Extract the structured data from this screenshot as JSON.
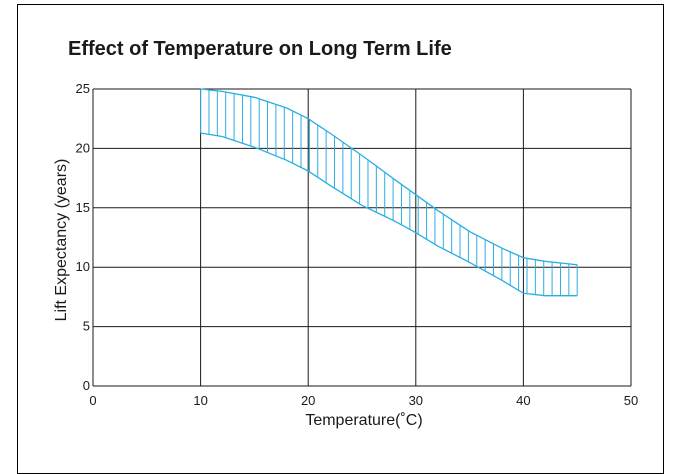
{
  "chart_data": {
    "type": "area",
    "title": "Effect of Temperature on Long Term Life",
    "xlabel": "Temperature(˚C)",
    "ylabel": "Lift Expectancy  (years)",
    "xlim": [
      0,
      50
    ],
    "ylim": [
      0,
      25
    ],
    "x_ticks": [
      "0",
      "10",
      "20",
      "30",
      "40",
      "50"
    ],
    "y_ticks": [
      "0",
      "5",
      "10",
      "15",
      "20",
      "25"
    ],
    "grid": true,
    "series": [
      {
        "x": [
          10,
          12,
          15,
          18,
          20,
          22,
          25,
          28,
          30,
          32,
          35,
          38,
          40,
          42,
          44,
          45
        ],
        "upper": [
          25,
          24.8,
          24.3,
          23.4,
          22.5,
          21.3,
          19.4,
          17.4,
          16.1,
          14.8,
          13.0,
          11.6,
          10.8,
          10.5,
          10.3,
          10.2
        ],
        "lower": [
          21.3,
          21.0,
          20.1,
          19.0,
          18.1,
          16.9,
          15.2,
          13.9,
          12.9,
          11.8,
          10.4,
          8.9,
          7.8,
          7.6,
          7.6,
          7.6
        ]
      }
    ],
    "colors": {
      "band": "#29aee2",
      "grid": "#1a1a1a"
    }
  }
}
